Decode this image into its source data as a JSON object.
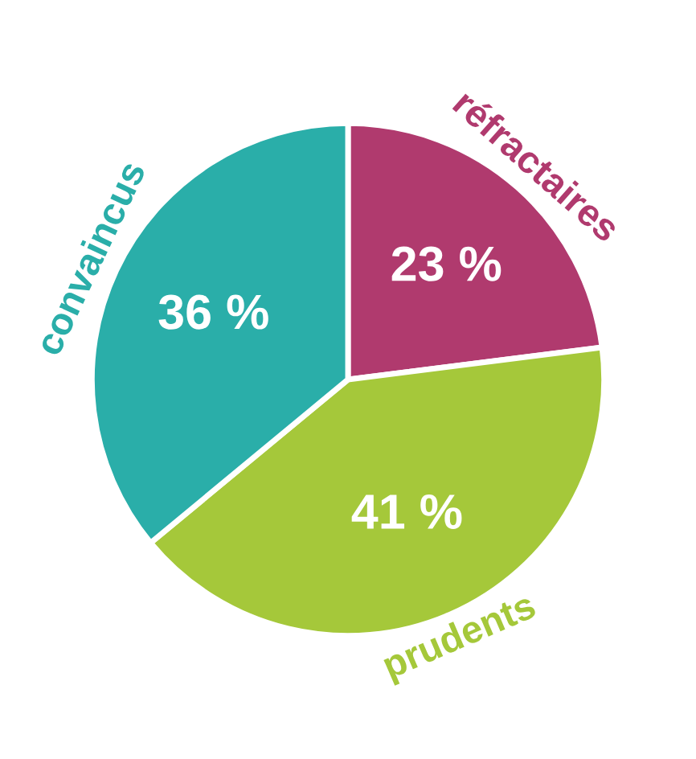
{
  "chart_data": {
    "type": "pie",
    "categories": [
      "réfractaires",
      "prudents",
      "convaincus"
    ],
    "values": [
      23,
      41,
      36
    ],
    "colors": [
      "#b03a6e",
      "#a5c83a",
      "#2aaea9"
    ],
    "value_labels": [
      "23 %",
      "41 %",
      "36 %"
    ],
    "legend": false
  }
}
